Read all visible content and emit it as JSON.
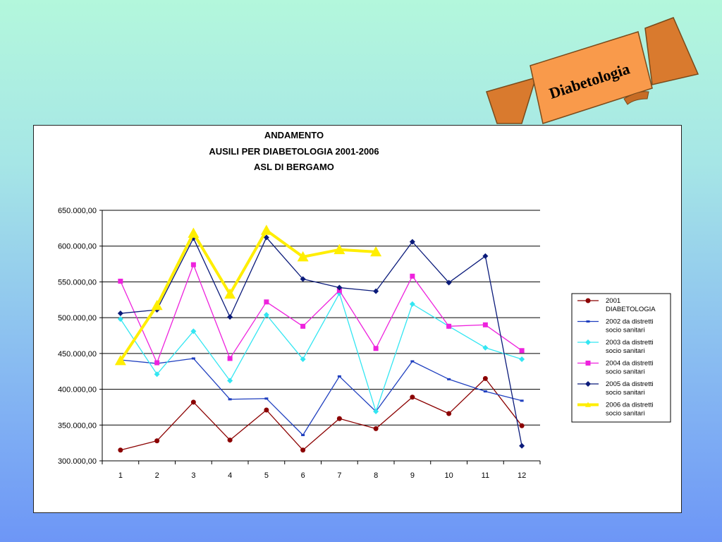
{
  "banner": {
    "label": "Diabetologia",
    "fill": "#f99a4b"
  },
  "chart_data": {
    "type": "line",
    "title": [
      "ANDAMENTO",
      "AUSILI PER DIABETOLOGIA  2001-2006",
      "ASL DI BERGAMO"
    ],
    "xlabel": "",
    "ylabel": "",
    "x": [
      "1",
      "2",
      "3",
      "4",
      "5",
      "6",
      "7",
      "8",
      "9",
      "10",
      "11",
      "12"
    ],
    "ylim": [
      300000,
      650000
    ],
    "yticks": [
      "650.000,00",
      "600.000,00",
      "550.000,00",
      "500.000,00",
      "450.000,00",
      "400.000,00",
      "350.000,00",
      "300.000,00"
    ],
    "grid": true,
    "legend_position": "right",
    "series": [
      {
        "name": [
          "2001",
          "DIABETOLOGIA"
        ],
        "color": "#8b0000",
        "marker": "circle",
        "values": [
          315000,
          328000,
          382000,
          329000,
          371000,
          315000,
          359000,
          345000,
          389000,
          366000,
          415000,
          349000
        ]
      },
      {
        "name": [
          "2002 da distretti",
          "socio sanitari"
        ],
        "color": "#1f3fbf",
        "marker": "dash",
        "values": [
          441000,
          436000,
          443000,
          386000,
          387000,
          336000,
          418000,
          369000,
          439000,
          414000,
          397000,
          384000
        ]
      },
      {
        "name": [
          "2003 da distretti",
          "socio sanitari"
        ],
        "color": "#33e6f2",
        "marker": "diamond",
        "values": [
          498000,
          421000,
          481000,
          412000,
          504000,
          442000,
          534000,
          369000,
          519000,
          488000,
          458000,
          442000
        ]
      },
      {
        "name": [
          "2004 da distretti",
          "socio sanitari"
        ],
        "color": "#ee22dd",
        "marker": "square",
        "values": [
          551000,
          437000,
          574000,
          443000,
          522000,
          488000,
          538000,
          457000,
          558000,
          488000,
          490000,
          454000
        ]
      },
      {
        "name": [
          "2005 da distretti",
          "socio sanitari"
        ],
        "color": "#0a1a7a",
        "marker": "diamond",
        "values": [
          506000,
          511000,
          611000,
          501000,
          612000,
          554000,
          542000,
          537000,
          606000,
          549000,
          586000,
          321000
        ]
      },
      {
        "name": [
          "2006 da distretti",
          "socio sanitari"
        ],
        "color": "#ffee00",
        "marker": "triangle",
        "values": [
          440000,
          517000,
          618000,
          533000,
          622000,
          585000,
          595000,
          592000,
          null,
          null,
          null,
          null
        ]
      }
    ]
  }
}
